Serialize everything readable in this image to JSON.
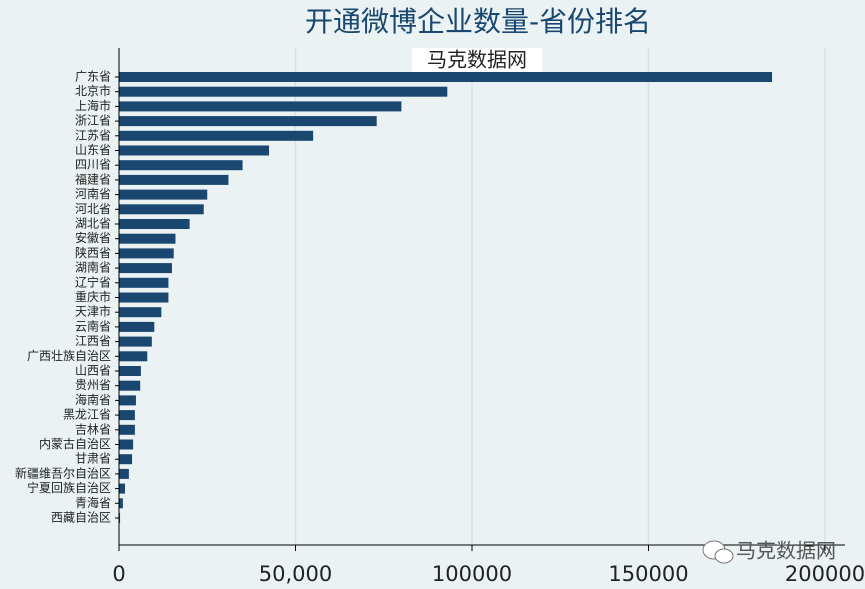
{
  "chart_data": {
    "type": "hbar",
    "title": "开通微博企业数量-省份排名",
    "subtitle": "马克数据网",
    "watermark": "马克数据网",
    "categories": [
      "广东省",
      "北京市",
      "上海市",
      "浙江省",
      "江苏省",
      "山东省",
      "四川省",
      "福建省",
      "河南省",
      "河北省",
      "湖北省",
      "安徽省",
      "陕西省",
      "湖南省",
      "辽宁省",
      "重庆市",
      "天津市",
      "云南省",
      "江西省",
      "广西壮族自治区",
      "山西省",
      "贵州省",
      "海南省",
      "黑龙江省",
      "吉林省",
      "内蒙古自治区",
      "甘肃省",
      "新疆维吾尔自治区",
      "宁夏回族自治区",
      "青海省",
      "西藏自治区"
    ],
    "values": [
      185000,
      93000,
      80000,
      73000,
      55000,
      42500,
      35000,
      31000,
      25000,
      24000,
      20000,
      16000,
      15500,
      15000,
      14000,
      14000,
      12000,
      10000,
      9300,
      8000,
      6200,
      6000,
      4800,
      4500,
      4500,
      4000,
      3700,
      2800,
      1700,
      1100,
      300
    ],
    "color": "#1a476f",
    "xlim": [
      0,
      200000
    ],
    "xticks": [
      0,
      {
        "value": 50000,
        "label": "50,000"
      },
      100000,
      150000,
      200000
    ],
    "grid": true
  }
}
